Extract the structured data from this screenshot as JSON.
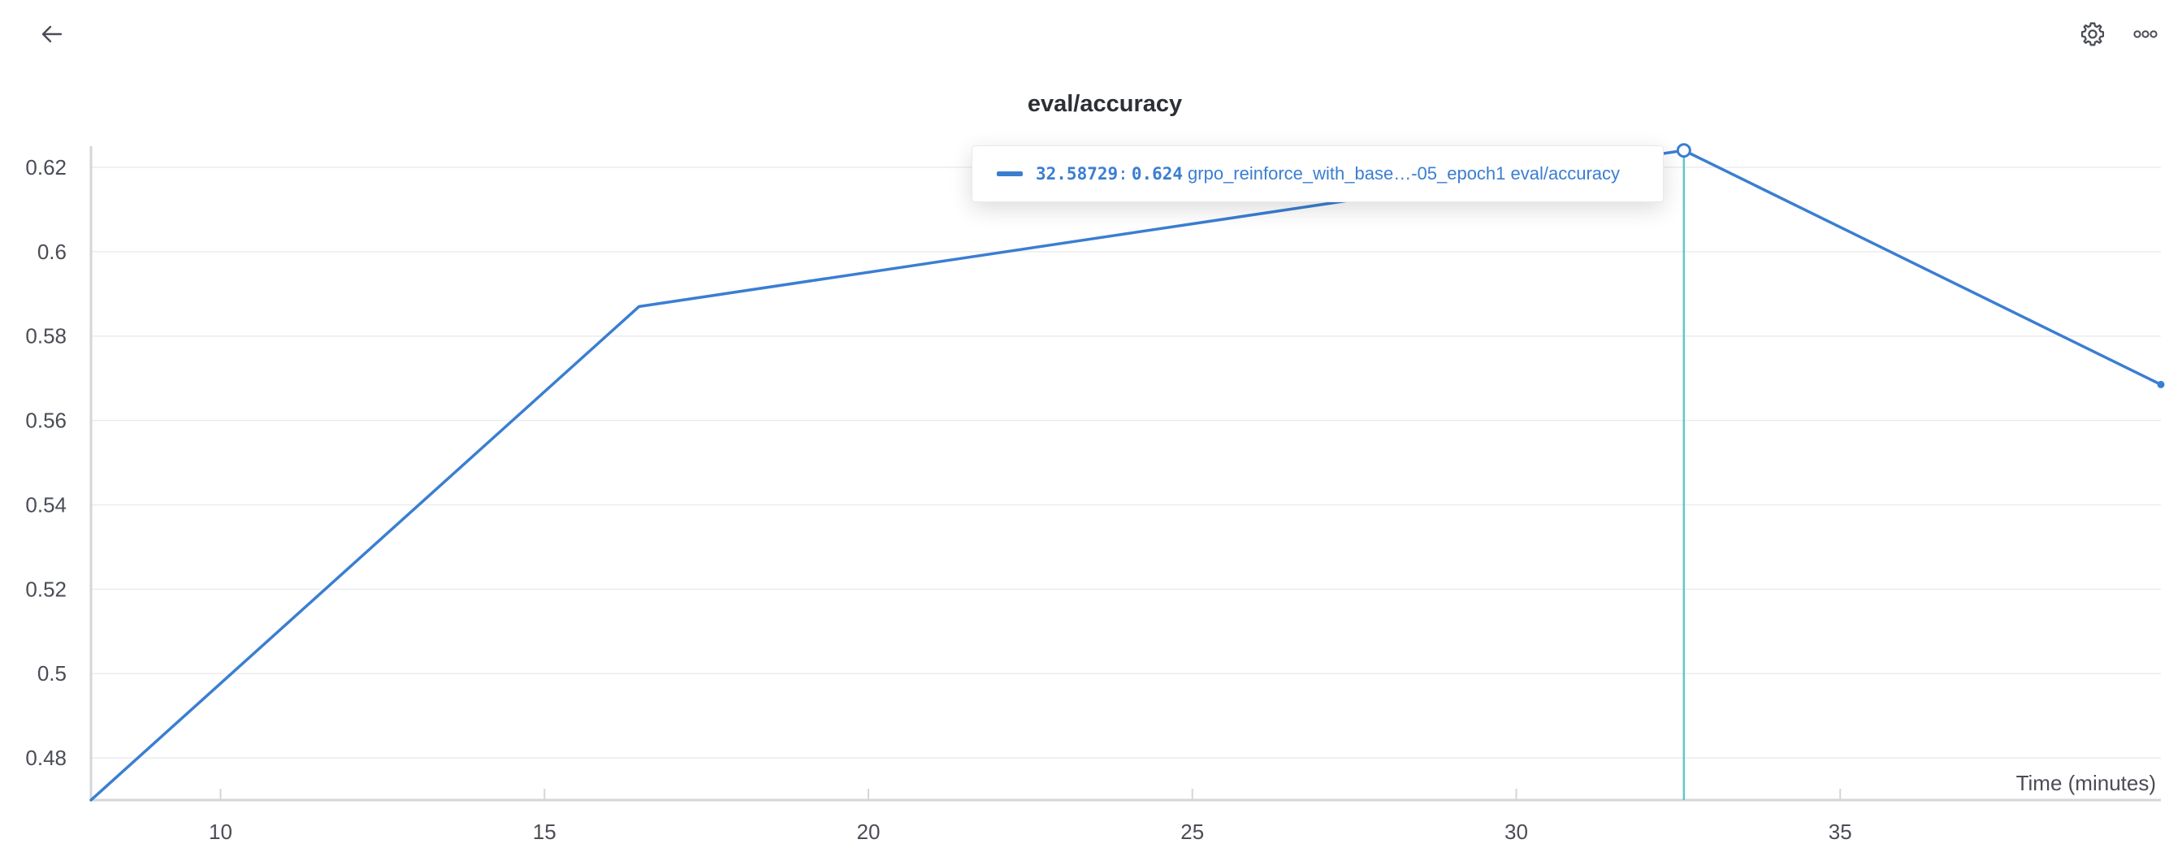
{
  "toolbar": {
    "back_icon": "arrow-left-icon",
    "settings_icon": "gear-icon",
    "more_icon": "more-horizontal-icon"
  },
  "colors": {
    "series": "#3a7ed2",
    "crosshair": "#5fc8c8",
    "grid": "#ececef",
    "axis": "#d4d6da",
    "text": "#4a4d55"
  },
  "tooltip": {
    "x": "32.58729",
    "separator": ":",
    "y": "0.624",
    "run": "grpo_reinforce_with_base…-05_epoch1 eval/accuracy"
  },
  "chart_data": {
    "type": "line",
    "title": "eval/accuracy",
    "xlabel": "Time (minutes)",
    "ylabel": "",
    "xlim": [
      8,
      39.95
    ],
    "ylim": [
      0.47,
      0.625
    ],
    "xticks": [
      10,
      15,
      20,
      25,
      30,
      35
    ],
    "yticks": [
      0.48,
      0.5,
      0.52,
      0.54,
      0.56,
      0.58,
      0.6,
      0.62
    ],
    "ytick_labels": [
      "0.48",
      "0.5",
      "0.52",
      "0.54",
      "0.56",
      "0.58",
      "0.6",
      "0.62"
    ],
    "grid": true,
    "legend": "none",
    "hover": {
      "x": 32.58729,
      "y": 0.624
    },
    "series": [
      {
        "x": [
          8.0,
          16.46,
          32.58729,
          39.95
        ],
        "y": [
          0.47,
          0.587,
          0.624,
          0.5685
        ]
      }
    ]
  }
}
